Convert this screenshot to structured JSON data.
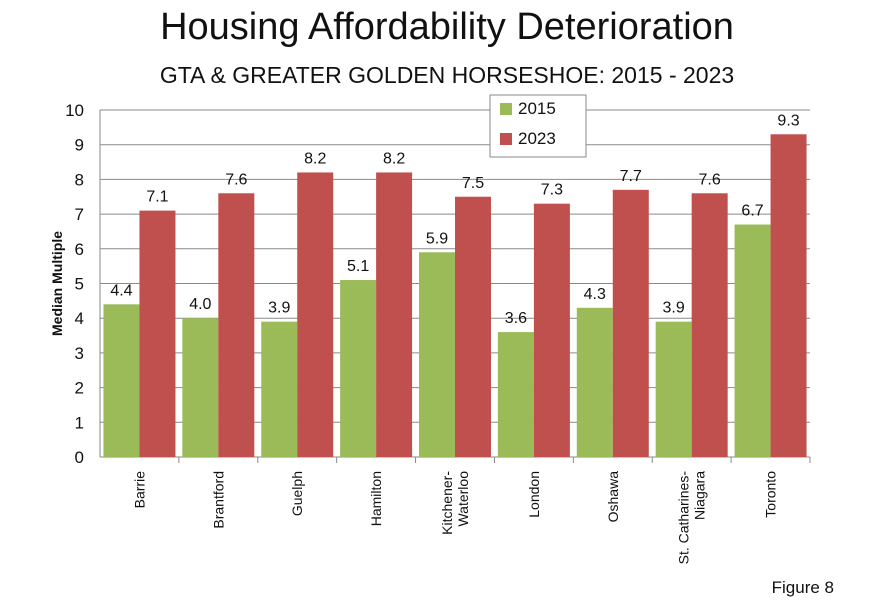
{
  "figure_label": "Figure 8",
  "chart_data": {
    "type": "bar",
    "title": "Housing Affordability Deterioration",
    "subtitle": "GTA & GREATER GOLDEN HORSESHOE: 2015 - 2023",
    "xlabel": "",
    "ylabel": "Median Multiple",
    "ylim": [
      0,
      10
    ],
    "yticks": [
      0,
      1,
      2,
      3,
      4,
      5,
      6,
      7,
      8,
      9,
      10
    ],
    "grid": true,
    "legend_position": "top-center",
    "categories": [
      [
        "Barrie"
      ],
      [
        "Brantford"
      ],
      [
        "Guelph"
      ],
      [
        "Hamilton"
      ],
      [
        "Kitchener-",
        "Waterloo"
      ],
      [
        "London"
      ],
      [
        "Oshawa"
      ],
      [
        "St. Catharines-",
        "Niagara"
      ],
      [
        "Toronto"
      ]
    ],
    "series": [
      {
        "name": "2015",
        "color": "#9bbb59",
        "values": [
          4.4,
          4.0,
          3.9,
          5.1,
          5.9,
          3.6,
          4.3,
          3.9,
          6.7
        ],
        "labels": [
          "4.4",
          "4.0",
          "3.9",
          "5.1",
          "5.9",
          "3.6",
          "4.3",
          "3.9",
          "6.7"
        ]
      },
      {
        "name": "2023",
        "color": "#c0504d",
        "values": [
          7.1,
          7.6,
          8.2,
          8.2,
          7.5,
          7.3,
          7.7,
          7.6,
          9.3
        ],
        "labels": [
          "7.1",
          "7.6",
          "8.2",
          "8.2",
          "7.5",
          "7.3",
          "7.7",
          "7.6",
          "9.3"
        ]
      }
    ]
  }
}
